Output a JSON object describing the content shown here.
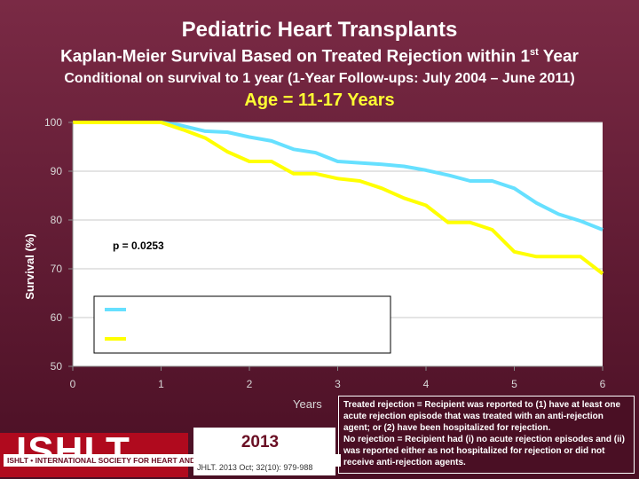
{
  "titles": {
    "main": "Pediatric Heart Transplants",
    "sub_pre": "Kaplan-Meier Survival Based on Treated Rejection within 1",
    "sub_sup": "st",
    "sub_post": " Year",
    "conditional": "Conditional on survival to 1 year (1-Year Follow-ups: July 2004 – June 2011)",
    "age": "Age = 11-17 Years"
  },
  "chart_data": {
    "type": "line",
    "xlabel": "Years",
    "ylabel": "Survival (%)",
    "xlim": [
      0,
      6
    ],
    "ylim": [
      50,
      100
    ],
    "xticks": [
      0,
      1,
      2,
      3,
      4,
      5,
      6
    ],
    "yticks": [
      50,
      60,
      70,
      80,
      90,
      100
    ],
    "grid": "horizontal",
    "annotation": "p = 0.0253",
    "legend_placement": "lower-left",
    "series": [
      {
        "color": "#66e0ff",
        "x": [
          0,
          1,
          1.2,
          1.5,
          1.75,
          2,
          2.25,
          2.5,
          2.75,
          3,
          3.25,
          3.5,
          3.75,
          4,
          4.25,
          4.5,
          4.75,
          5,
          5.25,
          5.5,
          5.75,
          6
        ],
        "y": [
          100,
          100,
          99.5,
          98.2,
          98.0,
          97.0,
          96.2,
          94.5,
          93.8,
          92.0,
          91.7,
          91.4,
          91.0,
          90.2,
          89.2,
          88.0,
          88.0,
          86.5,
          83.5,
          81.2,
          79.8,
          78.0
        ]
      },
      {
        "color": "#ffff00",
        "x": [
          0,
          1,
          1.25,
          1.5,
          1.75,
          2,
          2.25,
          2.5,
          2.75,
          3,
          3.25,
          3.5,
          3.75,
          4,
          4.25,
          4.5,
          4.75,
          5,
          5.25,
          5.5,
          5.75,
          6
        ],
        "y": [
          100,
          100,
          98.5,
          96.8,
          94.0,
          92.0,
          92.0,
          89.5,
          89.5,
          88.5,
          88.0,
          86.5,
          84.5,
          83.0,
          79.5,
          79.5,
          78.0,
          73.5,
          72.5,
          72.5,
          72.5,
          69.0
        ]
      }
    ]
  },
  "notes": {
    "treated": "Treated rejection = Recipient was reported to (1) have at least one acute rejection episode that was treated with an anti-rejection agent; or (2) have been hospitalized for rejection.",
    "none": "No rejection = Recipient had (i) no acute rejection episodes and (ii) was reported either as not hospitalized for rejection or did not receive anti-rejection agents."
  },
  "footer": {
    "logo": "ISHLT",
    "logo_sub": "ISHLT • INTERNATIONAL SOCIETY FOR HEART AND LUNG TRANSPLANTATION",
    "year": "2013",
    "citation": "JHLT. 2013 Oct; 32(10): 979-988"
  },
  "colors": {
    "background": "#5c1a30",
    "plot_background": "#ffffff",
    "accent_title": "#ffff33"
  }
}
